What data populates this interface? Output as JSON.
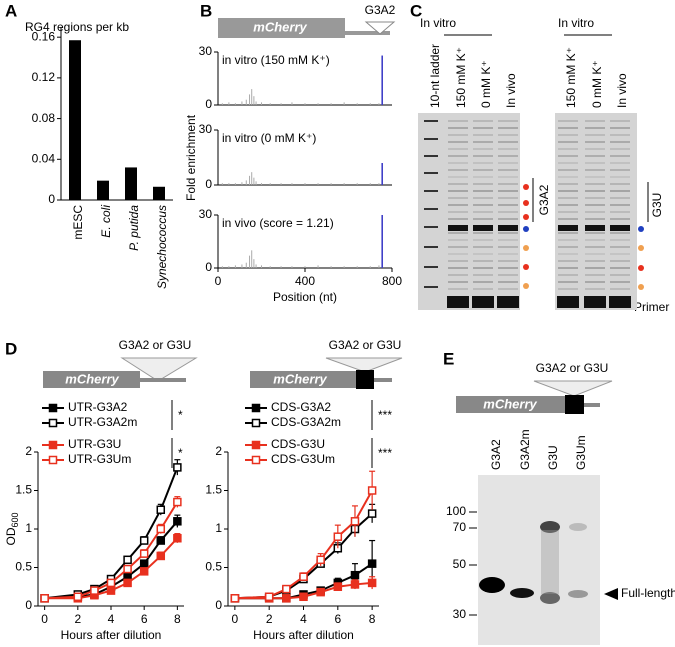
{
  "panel_labels": [
    "A",
    "B",
    "C",
    "D",
    "E"
  ],
  "chart_data": [
    {
      "type": "bar",
      "title": "RG4 regions per kb",
      "categories": [
        "mESC",
        "E. coli",
        "P. putida",
        "Synechococcus"
      ],
      "values": [
        0.157,
        0.019,
        0.032,
        0.013
      ],
      "color": "#000000",
      "ylim": [
        0,
        0.17
      ],
      "yticks": [
        0,
        0.04,
        0.08,
        0.12,
        0.16
      ]
    },
    {
      "type": "spike",
      "annotation": "in vitro (150 mM K⁺)",
      "x": [
        20,
        50,
        80,
        110,
        130,
        145,
        155,
        165,
        175,
        200,
        240,
        290,
        340,
        400,
        460,
        520,
        580,
        640,
        700,
        740
      ],
      "series": [
        {
          "color": "#aaaaaa",
          "values": [
            1,
            1.5,
            1,
            2,
            3,
            6,
            9,
            5,
            2,
            1.5,
            1,
            1,
            1.5,
            1,
            1,
            1,
            1.5,
            1,
            1,
            1
          ]
        },
        {
          "color": "#4040c8",
          "x": [
            755
          ],
          "values": [
            28
          ]
        }
      ],
      "xlim": [
        0,
        800
      ],
      "ylim": [
        0,
        30
      ],
      "yticks": [
        0,
        30
      ]
    },
    {
      "type": "spike",
      "annotation": "in vitro (0 mM K⁺)",
      "ylabel": "Fold enrichment",
      "x": [
        20,
        50,
        80,
        110,
        130,
        145,
        155,
        165,
        175,
        200,
        240,
        290,
        340,
        400,
        460,
        520,
        580,
        640,
        700,
        740
      ],
      "series": [
        {
          "color": "#aaaaaa",
          "values": [
            1,
            1,
            1,
            1.5,
            2.5,
            5,
            7,
            4,
            2,
            1,
            1,
            1,
            1,
            1,
            1,
            1,
            1,
            1,
            1,
            1
          ]
        },
        {
          "color": "#4040c8",
          "x": [
            755
          ],
          "values": [
            12
          ]
        }
      ],
      "xlim": [
        0,
        800
      ],
      "ylim": [
        0,
        30
      ],
      "yticks": [
        0,
        30
      ]
    },
    {
      "type": "spike",
      "annotation": "in vivo (score = 1.21)",
      "xlabel": "Position (nt)",
      "x": [
        20,
        50,
        80,
        110,
        130,
        145,
        155,
        165,
        175,
        200,
        240,
        290,
        340,
        400,
        460,
        520,
        580,
        640,
        700,
        740
      ],
      "series": [
        {
          "color": "#aaaaaa",
          "values": [
            1,
            1,
            1.5,
            2,
            3,
            7,
            10,
            5,
            2,
            1.5,
            1,
            1,
            1,
            1,
            1.5,
            1,
            1,
            1,
            1,
            1.5
          ]
        },
        {
          "color": "#4040c8",
          "x": [
            755
          ],
          "values": [
            30
          ]
        }
      ],
      "xlim": [
        0,
        800
      ],
      "xticks": [
        0,
        400,
        800
      ],
      "ylim": [
        0,
        30
      ],
      "yticks": [
        0,
        30
      ]
    },
    {
      "type": "line",
      "ylabel": "OD",
      "ylabel_sub": "600",
      "xlabel": "Hours after dilution",
      "annotations": [
        "*",
        "*"
      ],
      "x": [
        0,
        2,
        3,
        4,
        5,
        6,
        7,
        8
      ],
      "series": [
        {
          "name": "UTR-G3A2",
          "color": "#000000",
          "filled": true,
          "values": [
            0.1,
            0.12,
            0.15,
            0.25,
            0.38,
            0.55,
            0.85,
            1.1
          ],
          "errors": [
            0.02,
            0.02,
            0.02,
            0.03,
            0.03,
            0.04,
            0.05,
            0.08
          ]
        },
        {
          "name": "UTR-G3A2m",
          "color": "#000000",
          "filled": false,
          "values": [
            0.1,
            0.15,
            0.22,
            0.35,
            0.6,
            0.85,
            1.25,
            1.8
          ],
          "errors": [
            0.02,
            0.02,
            0.03,
            0.03,
            0.04,
            0.05,
            0.07,
            0.1
          ]
        },
        {
          "name": "UTR-G3U",
          "color": "#e8301e",
          "filled": true,
          "values": [
            0.1,
            0.1,
            0.14,
            0.2,
            0.3,
            0.45,
            0.65,
            0.88
          ],
          "errors": [
            0.02,
            0.02,
            0.02,
            0.02,
            0.03,
            0.04,
            0.05,
            0.06
          ]
        },
        {
          "name": "UTR-G3Um",
          "color": "#e8301e",
          "filled": false,
          "values": [
            0.1,
            0.12,
            0.2,
            0.3,
            0.48,
            0.68,
            1.0,
            1.35
          ],
          "errors": [
            0.02,
            0.02,
            0.02,
            0.03,
            0.04,
            0.05,
            0.06,
            0.07
          ]
        }
      ],
      "xlim": [
        -0.4,
        8.4
      ],
      "xticks": [
        0,
        2,
        4,
        6,
        8
      ],
      "ylim": [
        0,
        2
      ],
      "yticks": [
        0,
        0.5,
        1,
        1.5,
        2
      ]
    },
    {
      "type": "line",
      "xlabel": "Hours after dilution",
      "annotations": [
        "***",
        "***"
      ],
      "x": [
        0,
        2,
        3,
        4,
        5,
        6,
        7,
        8
      ],
      "series": [
        {
          "name": "CDS-G3A2",
          "color": "#000000",
          "filled": true,
          "values": [
            0.1,
            0.1,
            0.1,
            0.15,
            0.2,
            0.3,
            0.4,
            0.55
          ],
          "errors": [
            0.02,
            0.02,
            0.02,
            0.03,
            0.04,
            0.06,
            0.15,
            0.3
          ]
        },
        {
          "name": "CDS-G3A2m",
          "color": "#000000",
          "filled": false,
          "values": [
            0.1,
            0.12,
            0.2,
            0.35,
            0.55,
            0.75,
            1.0,
            1.2
          ],
          "errors": [
            0.02,
            0.02,
            0.03,
            0.04,
            0.05,
            0.07,
            0.1,
            0.12
          ]
        },
        {
          "name": "CDS-G3U",
          "color": "#e8301e",
          "filled": true,
          "values": [
            0.1,
            0.1,
            0.1,
            0.12,
            0.18,
            0.25,
            0.28,
            0.3
          ],
          "errors": [
            0.02,
            0.02,
            0.02,
            0.02,
            0.03,
            0.05,
            0.06,
            0.08
          ]
        },
        {
          "name": "CDS-G3Um",
          "color": "#e8301e",
          "filled": false,
          "values": [
            0.1,
            0.12,
            0.22,
            0.38,
            0.6,
            0.9,
            1.1,
            1.5
          ],
          "errors": [
            0.02,
            0.02,
            0.03,
            0.05,
            0.08,
            0.15,
            0.2,
            0.25
          ]
        }
      ],
      "xlim": [
        -0.4,
        8.4
      ],
      "xticks": [
        0,
        2,
        4,
        6,
        8
      ],
      "ylim": [
        0,
        2
      ],
      "yticks": [
        0,
        0.5,
        1,
        1.5,
        2
      ]
    }
  ],
  "diagrams": {
    "b_gene": "mCherry",
    "b_insert": "G3A2",
    "d_left_gene": "mCherry",
    "d_left_insert": "G3A2 or G3U",
    "d_right_gene": "mCherry",
    "d_right_insert": "G3A2 or G3U",
    "e_gene": "mCherry",
    "e_insert": "G3A2 or G3U"
  },
  "gel_c": {
    "left_header": "In vitro",
    "left_lanes": [
      "10-nt ladder",
      "150 mM K⁺",
      "0 mM K⁺",
      "In vivo"
    ],
    "left_bracket": "G3A2",
    "right_header": "In vitro",
    "right_lanes": [
      "150 mM K⁺",
      "0 mM K⁺",
      "In vivo"
    ],
    "right_bracket": "G3U",
    "primer": "Primer"
  },
  "blot_e": {
    "lanes": [
      "G3A2",
      "G3A2m",
      "G3U",
      "G3Um"
    ],
    "markers": [
      100,
      70,
      50,
      30
    ],
    "arrow_label": "Full-length"
  }
}
